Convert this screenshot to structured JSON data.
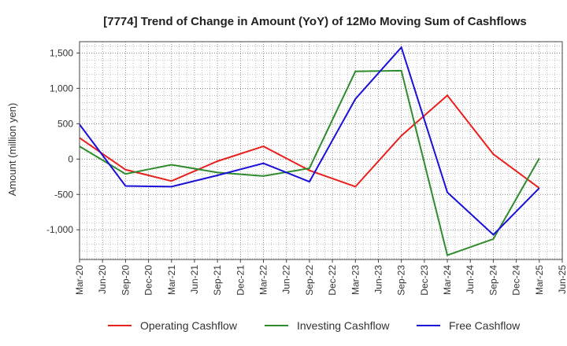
{
  "chart_data": {
    "type": "line",
    "title": "[7774]  Trend of Change in Amount (YoY) of 12Mo Moving Sum of Cashflows",
    "xlabel": "",
    "ylabel": "Amount (million yen)",
    "ylim": [
      -1420,
      1660
    ],
    "yticks": [
      1500,
      1000,
      500,
      0,
      -500,
      -1000
    ],
    "ytick_labels": [
      "1,500",
      "1,000",
      "500",
      "0",
      "-500",
      "-1,000"
    ],
    "categories": [
      "Mar-20",
      "Jun-20",
      "Sep-20",
      "Dec-20",
      "Mar-21",
      "Jun-21",
      "Sep-21",
      "Dec-21",
      "Mar-22",
      "Jun-22",
      "Sep-22",
      "Dec-22",
      "Mar-23",
      "Jun-23",
      "Sep-23",
      "Dec-23",
      "Mar-24",
      "Jun-24",
      "Sep-24",
      "Dec-24",
      "Mar-25",
      "Jun-25"
    ],
    "grid": true,
    "legend_position": "bottom",
    "series": [
      {
        "name": "Operating Cashflow",
        "color": "#e8211e",
        "points": [
          [
            0,
            300
          ],
          [
            2,
            -150
          ],
          [
            4,
            -310
          ],
          [
            6,
            -30
          ],
          [
            8,
            180
          ],
          [
            10,
            -160
          ],
          [
            12,
            -390
          ],
          [
            14,
            330
          ],
          [
            16,
            900
          ],
          [
            18,
            70
          ],
          [
            20,
            -410
          ]
        ]
      },
      {
        "name": "Investing Cashflow",
        "color": "#2e8b2e",
        "points": [
          [
            0,
            180
          ],
          [
            2,
            -210
          ],
          [
            4,
            -80
          ],
          [
            6,
            -190
          ],
          [
            8,
            -240
          ],
          [
            10,
            -130
          ],
          [
            12,
            1240
          ],
          [
            14,
            1250
          ],
          [
            16,
            -1360
          ],
          [
            18,
            -1130
          ],
          [
            20,
            10
          ]
        ]
      },
      {
        "name": "Free Cashflow",
        "color": "#1a10d8",
        "points": [
          [
            0,
            490
          ],
          [
            2,
            -380
          ],
          [
            4,
            -390
          ],
          [
            6,
            -230
          ],
          [
            8,
            -60
          ],
          [
            10,
            -320
          ],
          [
            12,
            850
          ],
          [
            14,
            1580
          ],
          [
            16,
            -470
          ],
          [
            18,
            -1070
          ],
          [
            20,
            -410
          ]
        ]
      }
    ]
  }
}
